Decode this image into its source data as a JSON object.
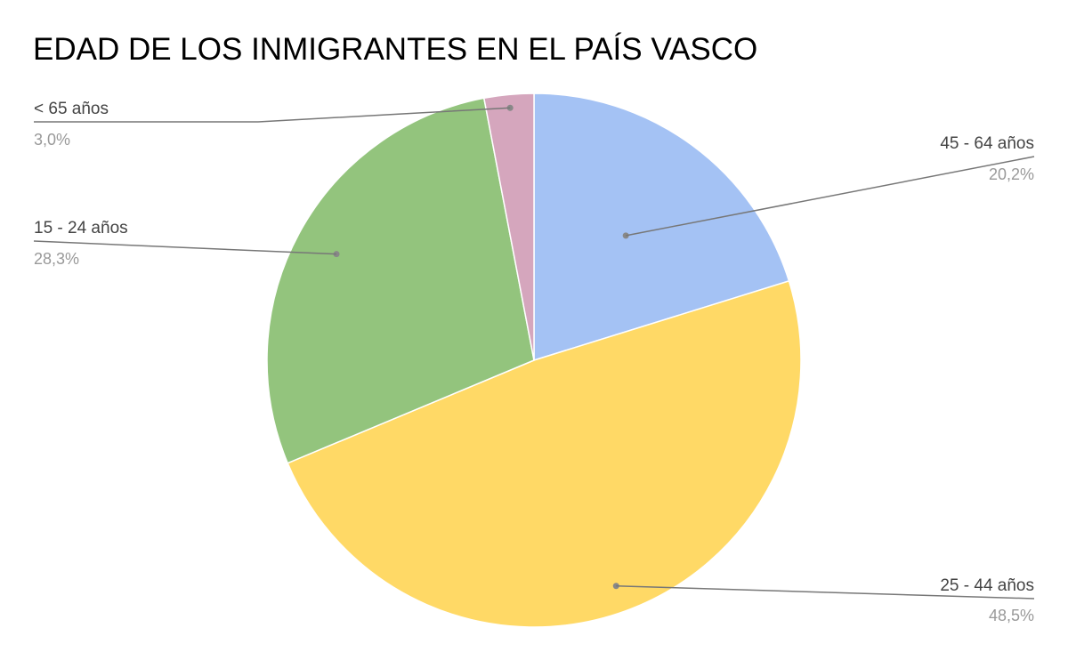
{
  "chart_data": {
    "type": "pie",
    "title": "EDAD DE LOS INMIGRANTES EN EL PAÍS VASCO",
    "slices": [
      {
        "label": "45 - 64 años",
        "value": 20.2,
        "display": "20,2%",
        "color": "#a4c2f4"
      },
      {
        "label": "25 - 44 años",
        "value": 48.5,
        "display": "48,5%",
        "color": "#ffd966"
      },
      {
        "label": "15 - 24 años",
        "value": 28.3,
        "display": "28,3%",
        "color": "#93c47d"
      },
      {
        "label": "< 65 años",
        "value": 3.0,
        "display": "3,0%",
        "color": "#d5a6bd"
      }
    ],
    "legend": "none",
    "label_style": "callout-lines"
  }
}
